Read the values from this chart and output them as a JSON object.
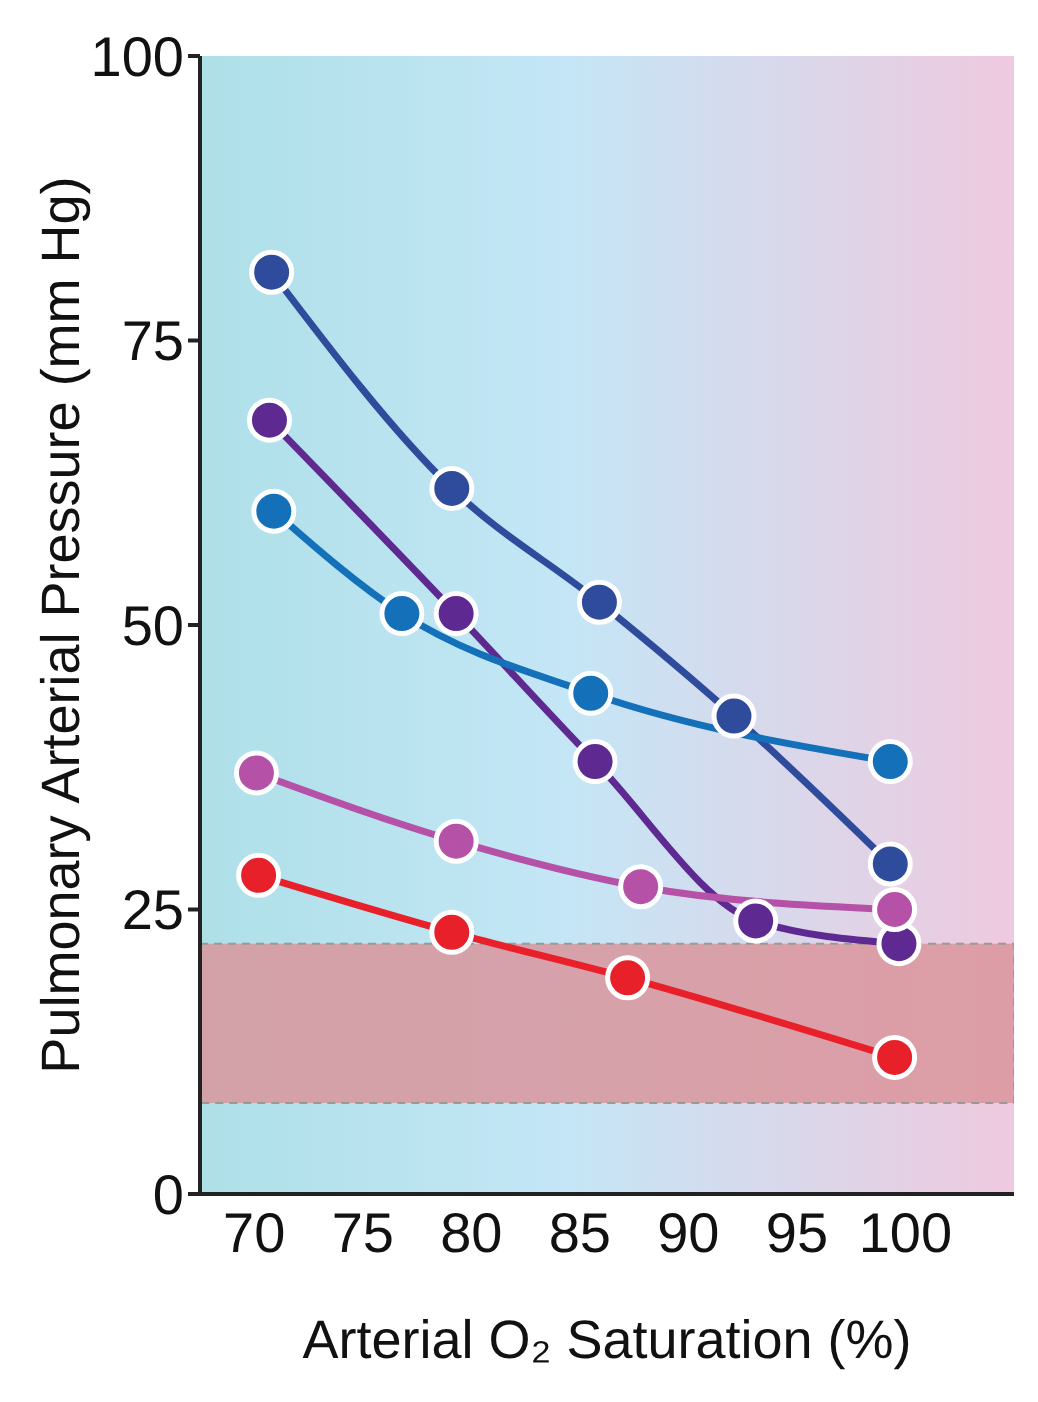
{
  "chart_data": {
    "type": "line",
    "xlabel": "Arterial O₂ Saturation (%)",
    "ylabel": "Pulmonary Arterial Pressure (mm Hg)",
    "xlim": [
      67.5,
      105
    ],
    "xticks": [
      70,
      75,
      80,
      85,
      90,
      95,
      100
    ],
    "ylim": [
      0,
      100
    ],
    "yticks": [
      0,
      25,
      50,
      75,
      100
    ],
    "grid": false,
    "marker": "circle",
    "line_style": "solid",
    "bands": [
      {
        "axis": "y",
        "from": 8,
        "to": 22,
        "color": "#d9959c"
      }
    ],
    "series": [
      {
        "color": "#2f4b9c",
        "x": [
          70.8,
          79.1,
          85.9,
          92.1,
          99.3
        ],
        "values": [
          81,
          62,
          52,
          42,
          29
        ]
      },
      {
        "color": "#5e2a91",
        "x": [
          70.7,
          79.3,
          85.7,
          93.1,
          99.7
        ],
        "values": [
          68,
          51,
          38,
          24,
          22
        ]
      },
      {
        "color": "#1470b8",
        "x": [
          70.9,
          76.8,
          85.5,
          99.3
        ],
        "values": [
          60,
          51,
          44,
          38
        ]
      },
      {
        "color": "#b551a6",
        "x": [
          70.1,
          79.3,
          87.8,
          99.5
        ],
        "values": [
          37,
          31,
          27,
          25
        ]
      },
      {
        "color": "#e8202a",
        "x": [
          70.2,
          79.1,
          87.2,
          99.5
        ],
        "values": [
          28,
          23,
          19,
          12
        ]
      }
    ]
  }
}
